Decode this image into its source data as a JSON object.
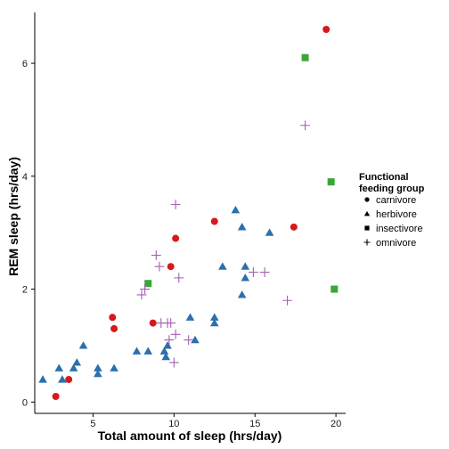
{
  "chart_data": {
    "type": "scatter",
    "title": "",
    "xlabel": "Total amount of sleep (hrs/day)",
    "ylabel": "REM sleep (hrs/day)",
    "xlim": [
      1.4,
      20.6
    ],
    "ylim": [
      -0.2,
      6.9
    ],
    "xticks": [
      5,
      10,
      15,
      20
    ],
    "yticks": [
      0,
      2,
      4,
      6
    ],
    "grid": false,
    "legend": {
      "title": "Functional\nfeeding group",
      "placement": "right"
    },
    "series": [
      {
        "name": "carnivore",
        "marker": "circle",
        "color": "#d7191c",
        "points": [
          [
            2.7,
            0.1
          ],
          [
            3.5,
            0.4
          ],
          [
            6.2,
            1.5
          ],
          [
            6.3,
            1.3
          ],
          [
            8.7,
            1.4
          ],
          [
            9.8,
            2.4
          ],
          [
            10.1,
            2.9
          ],
          [
            12.5,
            3.2
          ],
          [
            17.4,
            3.1
          ],
          [
            19.4,
            6.6
          ]
        ]
      },
      {
        "name": "herbivore",
        "marker": "triangle",
        "color": "#2c6fad",
        "points": [
          [
            1.9,
            0.4
          ],
          [
            2.9,
            0.6
          ],
          [
            3.1,
            0.4
          ],
          [
            3.8,
            0.6
          ],
          [
            4.0,
            0.7
          ],
          [
            4.4,
            1.0
          ],
          [
            5.3,
            0.6
          ],
          [
            5.3,
            0.5
          ],
          [
            6.3,
            0.6
          ],
          [
            7.7,
            0.9
          ],
          [
            8.4,
            0.9
          ],
          [
            9.4,
            0.9
          ],
          [
            9.5,
            0.8
          ],
          [
            9.6,
            1.0
          ],
          [
            11.0,
            1.5
          ],
          [
            11.3,
            1.1
          ],
          [
            12.5,
            1.5
          ],
          [
            12.5,
            1.4
          ],
          [
            13.0,
            2.4
          ],
          [
            13.8,
            3.4
          ],
          [
            14.2,
            3.1
          ],
          [
            14.2,
            1.9
          ],
          [
            14.4,
            2.4
          ],
          [
            14.4,
            2.2
          ],
          [
            15.9,
            3.0
          ]
        ]
      },
      {
        "name": "insectivore",
        "marker": "square",
        "color": "#3aa639",
        "points": [
          [
            8.4,
            2.1
          ],
          [
            18.1,
            6.1
          ],
          [
            19.7,
            3.9
          ],
          [
            19.9,
            2.0
          ]
        ]
      },
      {
        "name": "omnivore",
        "marker": "cross",
        "color": "#a45fb0",
        "points": [
          [
            8.0,
            1.9
          ],
          [
            8.2,
            2.0
          ],
          [
            8.9,
            2.6
          ],
          [
            9.1,
            2.4
          ],
          [
            9.2,
            1.4
          ],
          [
            9.6,
            1.4
          ],
          [
            9.7,
            1.1
          ],
          [
            9.8,
            1.4
          ],
          [
            10.0,
            0.7
          ],
          [
            10.1,
            1.2
          ],
          [
            10.1,
            3.5
          ],
          [
            10.3,
            2.2
          ],
          [
            10.9,
            1.1
          ],
          [
            14.9,
            2.3
          ],
          [
            15.6,
            2.3
          ],
          [
            17.0,
            1.8
          ],
          [
            18.1,
            4.9
          ]
        ]
      }
    ]
  }
}
